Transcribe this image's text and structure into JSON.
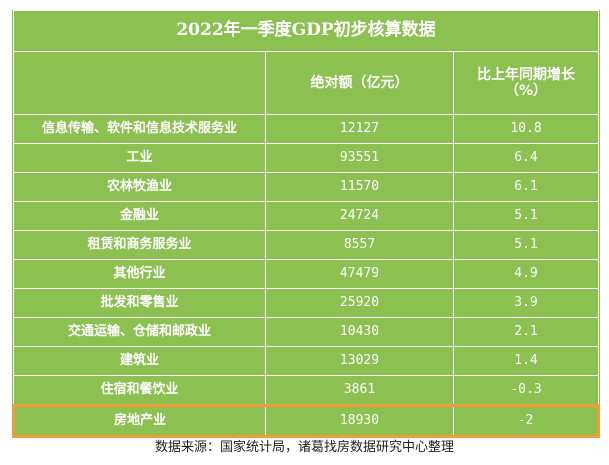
{
  "title": "2022年一季度GDP初步核算数据",
  "headers": {
    "industry": "",
    "value": "绝对额（亿元）",
    "growth_line1": "比上年同期增长",
    "growth_line2": "（%）"
  },
  "rows": [
    {
      "name": "信息传输、软件和信息技术服务业",
      "value": "12127",
      "growth": "10.8"
    },
    {
      "name": "工业",
      "value": "93551",
      "growth": "6.4"
    },
    {
      "name": "农林牧渔业",
      "value": "11570",
      "growth": "6.1"
    },
    {
      "name": "金融业",
      "value": "24724",
      "growth": "5.1"
    },
    {
      "name": "租赁和商务服务业",
      "value": "8557",
      "growth": "5.1"
    },
    {
      "name": "其他行业",
      "value": "47479",
      "growth": "4.9"
    },
    {
      "name": "批发和零售业",
      "value": "25920",
      "growth": "3.9"
    },
    {
      "name": "交通运输、仓储和邮政业",
      "value": "10430",
      "growth": "2.1"
    },
    {
      "name": "建筑业",
      "value": "13029",
      "growth": "1.4"
    },
    {
      "name": "住宿和餐饮业",
      "value": "3861",
      "growth": "-0.3"
    },
    {
      "name": "房地产业",
      "value": "18930",
      "growth": "-2"
    }
  ],
  "highlight_row": "房地产业",
  "colors": {
    "table_bg": "#8cc152",
    "highlight_border": "#f29c38"
  },
  "source": "数据来源：国家统计局，诸葛找房数据研究中心整理"
}
